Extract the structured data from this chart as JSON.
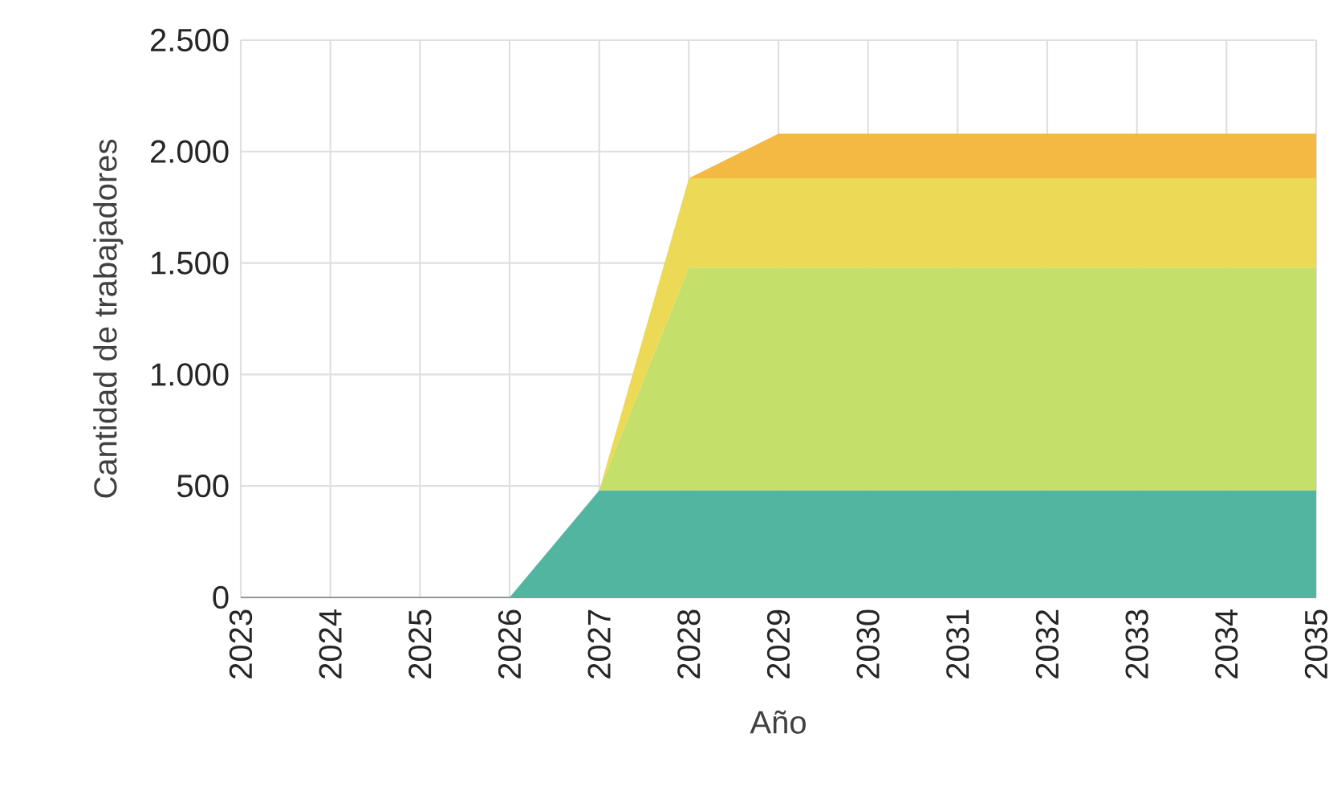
{
  "chart_data": {
    "type": "area",
    "stacked": true,
    "xlabel": "Año",
    "ylabel": "Cantidad de trabajadores",
    "x": [
      2023,
      2024,
      2025,
      2026,
      2027,
      2028,
      2029,
      2030,
      2031,
      2032,
      2033,
      2034,
      2035
    ],
    "series": [
      {
        "color": "#52b5a0",
        "values": [
          0,
          0,
          0,
          0,
          480,
          480,
          480,
          480,
          480,
          480,
          480,
          480,
          480
        ]
      },
      {
        "color": "#c5df6b",
        "values": [
          0,
          0,
          0,
          0,
          0,
          1000,
          1000,
          1000,
          1000,
          1000,
          1000,
          1000,
          1000
        ]
      },
      {
        "color": "#ecd955",
        "values": [
          0,
          0,
          0,
          0,
          0,
          400,
          400,
          400,
          400,
          400,
          400,
          400,
          400
        ]
      },
      {
        "color": "#f4b942",
        "values": [
          0,
          0,
          0,
          0,
          0,
          0,
          200,
          200,
          200,
          200,
          200,
          200,
          200
        ]
      }
    ],
    "xlim": [
      2023,
      2035
    ],
    "xticks": [
      2023,
      2024,
      2025,
      2026,
      2027,
      2028,
      2029,
      2030,
      2031,
      2032,
      2033,
      2034,
      2035
    ],
    "ylim": [
      0,
      2500
    ],
    "yticks": [
      0,
      500,
      {
        "value": 1000,
        "label": "1.000"
      },
      {
        "value": 1500,
        "label": "1.500"
      },
      {
        "value": 2000,
        "label": "2.000"
      },
      {
        "value": 2500,
        "label": "2.500"
      }
    ],
    "grid": true
  }
}
